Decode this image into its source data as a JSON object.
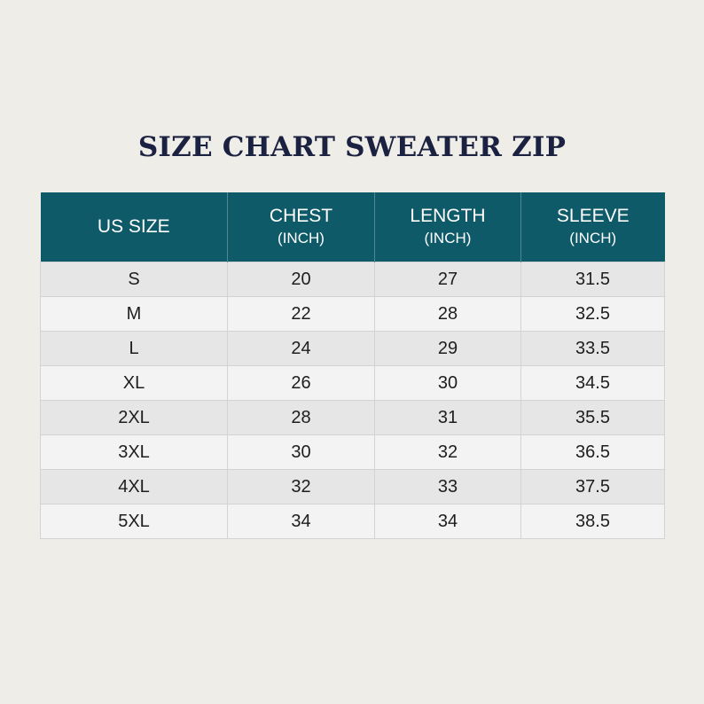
{
  "title": "SIZE CHART SWEATER ZIP",
  "table": {
    "headers": [
      {
        "main": "US SIZE",
        "sub": ""
      },
      {
        "main": "CHEST",
        "sub": "(INCH)"
      },
      {
        "main": "LENGTH",
        "sub": "(INCH)"
      },
      {
        "main": "SLEEVE",
        "sub": "(INCH)"
      }
    ],
    "rows": [
      [
        "S",
        "20",
        "27",
        "31.5"
      ],
      [
        "M",
        "22",
        "28",
        "32.5"
      ],
      [
        "L",
        "24",
        "29",
        "33.5"
      ],
      [
        "XL",
        "26",
        "30",
        "34.5"
      ],
      [
        "2XL",
        "28",
        "31",
        "35.5"
      ],
      [
        "3XL",
        "30",
        "32",
        "36.5"
      ],
      [
        "4XL",
        "32",
        "33",
        "37.5"
      ],
      [
        "5XL",
        "34",
        "34",
        "38.5"
      ]
    ]
  },
  "colors": {
    "background": "#efede7",
    "title": "#1b2140",
    "header_bg": "#0f5a68",
    "row_odd": "#e6e6e6",
    "row_even": "#f3f3f3"
  }
}
